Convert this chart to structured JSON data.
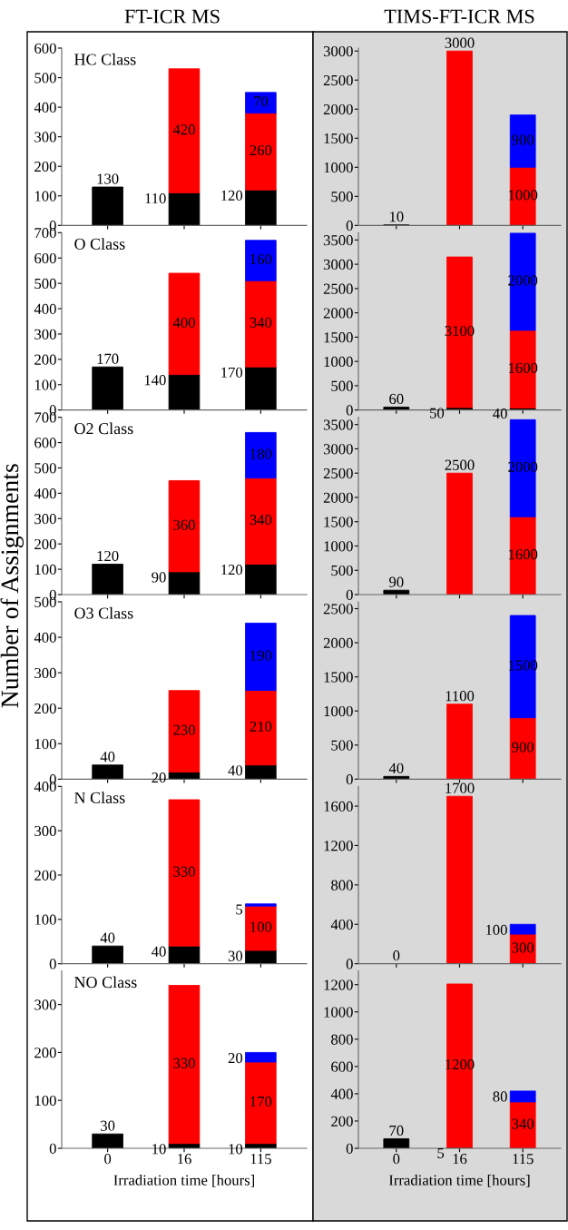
{
  "chart_data": [
    {
      "type": "bar",
      "stacked": true,
      "title": "FT-ICR MS",
      "annotations": [
        "HC Class"
      ],
      "categories": [
        "0",
        "16",
        "115"
      ],
      "ylim": [
        0,
        600
      ],
      "yticks": [
        0,
        100,
        200,
        300,
        400,
        500,
        600
      ],
      "tick_labels": "y",
      "data_labels": true,
      "series": [
        {
          "color": "#000000",
          "values": [
            130,
            110,
            120
          ]
        },
        {
          "color": "#ff0000",
          "values": [
            null,
            420,
            260
          ]
        },
        {
          "color": "#0000ff",
          "values": [
            null,
            null,
            70
          ]
        }
      ]
    },
    {
      "type": "bar",
      "stacked": true,
      "title": "TIMS-FT-ICR MS",
      "categories": [
        "0",
        "16",
        "115"
      ],
      "ylim": [
        0,
        3050
      ],
      "yticks": [
        0,
        500,
        1000,
        1500,
        2000,
        2500,
        3000
      ],
      "tick_labels": "y",
      "data_labels": true,
      "series": [
        {
          "color": "#000000",
          "values": [
            10,
            null,
            null
          ]
        },
        {
          "color": "#ff0000",
          "values": [
            null,
            3000,
            1000
          ]
        },
        {
          "color": "#0000ff",
          "values": [
            null,
            null,
            900
          ]
        }
      ]
    },
    {
      "type": "bar",
      "stacked": true,
      "annotations": [
        "O Class"
      ],
      "categories": [
        "0",
        "16",
        "115"
      ],
      "ylim": [
        0,
        700
      ],
      "yticks": [
        0,
        100,
        200,
        300,
        400,
        500,
        600,
        700
      ],
      "tick_labels": "y",
      "data_labels": true,
      "series": [
        {
          "color": "#000000",
          "values": [
            170,
            140,
            170
          ]
        },
        {
          "color": "#ff0000",
          "values": [
            null,
            400,
            340
          ]
        },
        {
          "color": "#0000ff",
          "values": [
            null,
            null,
            160
          ]
        }
      ]
    },
    {
      "type": "bar",
      "stacked": true,
      "categories": [
        "0",
        "16",
        "115"
      ],
      "ylim": [
        0,
        3650
      ],
      "yticks": [
        0,
        500,
        1000,
        1500,
        2000,
        2500,
        3000,
        3500
      ],
      "tick_labels": "y",
      "data_labels": true,
      "series": [
        {
          "color": "#000000",
          "values": [
            60,
            50,
            40
          ]
        },
        {
          "color": "#ff0000",
          "values": [
            null,
            3100,
            1600
          ]
        },
        {
          "color": "#0000ff",
          "values": [
            null,
            null,
            2000
          ]
        }
      ]
    },
    {
      "type": "bar",
      "stacked": true,
      "ylabel": "Number of Assignments",
      "annotations": [
        "O2 Class"
      ],
      "categories": [
        "0",
        "16",
        "115"
      ],
      "ylim": [
        0,
        700
      ],
      "yticks": [
        0,
        100,
        200,
        300,
        400,
        500,
        600,
        700
      ],
      "tick_labels": "y",
      "data_labels": true,
      "series": [
        {
          "color": "#000000",
          "values": [
            120,
            90,
            120
          ]
        },
        {
          "color": "#ff0000",
          "values": [
            null,
            360,
            340
          ]
        },
        {
          "color": "#0000ff",
          "values": [
            null,
            null,
            180
          ]
        }
      ]
    },
    {
      "type": "bar",
      "stacked": true,
      "categories": [
        "0",
        "16",
        "115"
      ],
      "ylim": [
        0,
        3650
      ],
      "yticks": [
        0,
        500,
        1000,
        1500,
        2000,
        2500,
        3000,
        3500
      ],
      "tick_labels": "y",
      "data_labels": true,
      "series": [
        {
          "color": "#000000",
          "values": [
            90,
            null,
            null
          ]
        },
        {
          "color": "#ff0000",
          "values": [
            null,
            2500,
            1600
          ]
        },
        {
          "color": "#0000ff",
          "values": [
            null,
            null,
            2000
          ]
        }
      ]
    },
    {
      "type": "bar",
      "stacked": true,
      "annotations": [
        "O3 Class"
      ],
      "categories": [
        "0",
        "16",
        "115"
      ],
      "ylim": [
        0,
        500
      ],
      "yticks": [
        0,
        100,
        200,
        300,
        400,
        500
      ],
      "tick_labels": "y",
      "data_labels": true,
      "series": [
        {
          "color": "#000000",
          "values": [
            40,
            20,
            40
          ]
        },
        {
          "color": "#ff0000",
          "values": [
            null,
            230,
            210
          ]
        },
        {
          "color": "#0000ff",
          "values": [
            null,
            null,
            190
          ]
        }
      ]
    },
    {
      "type": "bar",
      "stacked": true,
      "categories": [
        "0",
        "16",
        "115"
      ],
      "ylim": [
        0,
        2600
      ],
      "yticks": [
        0,
        500,
        1000,
        1500,
        2000,
        2500
      ],
      "tick_labels": "y",
      "data_labels": true,
      "series": [
        {
          "color": "#000000",
          "values": [
            40,
            null,
            null
          ]
        },
        {
          "color": "#ff0000",
          "values": [
            null,
            1100,
            900
          ]
        },
        {
          "color": "#0000ff",
          "values": [
            null,
            null,
            1500
          ]
        }
      ]
    },
    {
      "type": "bar",
      "stacked": true,
      "annotations": [
        "N Class"
      ],
      "categories": [
        "0",
        "16",
        "115"
      ],
      "ylim": [
        0,
        400
      ],
      "yticks": [
        0,
        100,
        200,
        300,
        400
      ],
      "tick_labels": "y",
      "data_labels": true,
      "series": [
        {
          "color": "#000000",
          "values": [
            40,
            40,
            30
          ]
        },
        {
          "color": "#ff0000",
          "values": [
            null,
            330,
            100
          ]
        },
        {
          "color": "#0000ff",
          "values": [
            null,
            null,
            5
          ]
        }
      ]
    },
    {
      "type": "bar",
      "stacked": true,
      "categories": [
        "0",
        "16",
        "115"
      ],
      "ylim": [
        0,
        1800
      ],
      "yticks": [
        0,
        400,
        800,
        1200,
        1600
      ],
      "tick_labels": "y",
      "data_labels": true,
      "series": [
        {
          "color": "#000000",
          "values": [
            0,
            null,
            null
          ]
        },
        {
          "color": "#ff0000",
          "values": [
            null,
            1700,
            300
          ]
        },
        {
          "color": "#0000ff",
          "values": [
            null,
            null,
            100
          ]
        }
      ]
    },
    {
      "type": "bar",
      "stacked": true,
      "annotations": [
        "NO Class"
      ],
      "xlabel": "Irradiation time [hours]",
      "categories": [
        "0",
        "16",
        "115"
      ],
      "ylim": [
        0,
        370
      ],
      "yticks": [
        0,
        100,
        200,
        300
      ],
      "data_labels": true,
      "series": [
        {
          "color": "#000000",
          "values": [
            30,
            10,
            10
          ]
        },
        {
          "color": "#ff0000",
          "values": [
            null,
            330,
            170
          ]
        },
        {
          "color": "#0000ff",
          "values": [
            null,
            null,
            20
          ]
        }
      ]
    },
    {
      "type": "bar",
      "stacked": true,
      "xlabel": "Irradiation time [hours]",
      "categories": [
        "0",
        "16",
        "115"
      ],
      "ylim": [
        0,
        1300
      ],
      "yticks": [
        0,
        200,
        400,
        600,
        800,
        1000,
        1200
      ],
      "data_labels": true,
      "series": [
        {
          "color": "#000000",
          "values": [
            70,
            5,
            null
          ]
        },
        {
          "color": "#ff0000",
          "values": [
            null,
            1200,
            340
          ]
        },
        {
          "color": "#0000ff",
          "values": [
            null,
            null,
            80
          ]
        }
      ]
    }
  ]
}
